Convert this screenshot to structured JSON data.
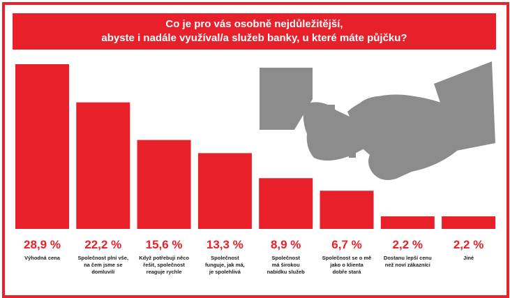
{
  "colors": {
    "accent": "#e8202a",
    "illustration": "#8c8c8c",
    "text": "#1a1a1a"
  },
  "illustration": {
    "name": "handshake-with-finance-icons"
  },
  "chart_data": {
    "type": "bar",
    "title_lines": [
      "Co je pro vás osobně nejdůležitější,",
      "abyste i nadále využíval/a služeb banky, u které máte půjčku?"
    ],
    "categories": [
      [
        "Výhodná cena"
      ],
      [
        "Společnost plní vše,",
        "na čem jsme se",
        "domluvili"
      ],
      [
        "Když potřebuji něco",
        "řešit, společnost",
        "reaguje rychle"
      ],
      [
        "Společnost",
        "funguje, jak má,",
        "je spolehlivá"
      ],
      [
        "Společnost",
        "má širokou",
        "nabídku služeb"
      ],
      [
        "Společnost se o mě",
        "jako o klienta",
        "dobře stará"
      ],
      [
        "Dostanu lepší cenu",
        "než noví zákazníci"
      ],
      [
        "Jiné"
      ]
    ],
    "values": [
      28.9,
      22.2,
      15.6,
      13.3,
      8.9,
      6.7,
      2.2,
      2.2
    ],
    "value_labels": [
      "28,9 %",
      "22,2 %",
      "15,6 %",
      "13,3 %",
      "8,9 %",
      "6,7 %",
      "2,2 %",
      "2,2 %"
    ],
    "xlabel": "",
    "ylabel": "",
    "ylim": [
      0,
      28.9
    ],
    "grid": false,
    "legend": "none"
  }
}
